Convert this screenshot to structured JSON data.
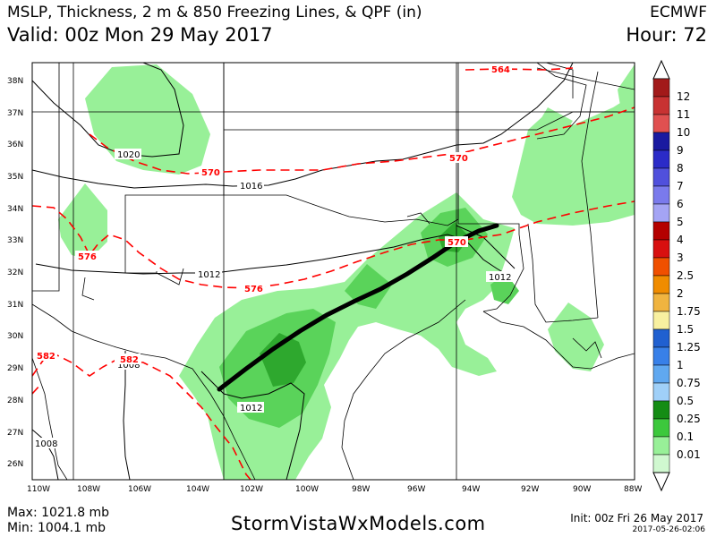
{
  "header": {
    "title": "MSLP, Thickness, 2 m & 850 Freezing Lines, & QPF (in)",
    "valid": "Valid: 00z Mon 29 May 2017",
    "model": "ECMWF",
    "hour": "Hour: 72"
  },
  "map": {
    "lat_ticks": [
      "38N",
      "37N",
      "36N",
      "35N",
      "34N",
      "33N",
      "32N",
      "31N",
      "30N",
      "29N",
      "28N",
      "27N",
      "26N"
    ],
    "lon_ticks": [
      "110W",
      "108W",
      "106W",
      "104W",
      "102W",
      "100W",
      "98W",
      "96W",
      "94W",
      "92W",
      "90W",
      "88W"
    ],
    "pressure_labels": [
      "1020",
      "1016",
      "1012",
      "1012",
      "1012",
      "1008",
      "1008"
    ],
    "thickness_labels": [
      "564",
      "570",
      "570",
      "570",
      "576",
      "576",
      "582",
      "582"
    ],
    "colors": {
      "qpf_light": "#98f098",
      "qpf_mid": "#5ad35a",
      "qpf_dark": "#2ea82e",
      "thickness": "#ff0000",
      "front": "#000000"
    }
  },
  "colorbar": {
    "labels": [
      "12",
      "11",
      "10",
      "9",
      "8",
      "7",
      "6",
      "5",
      "4",
      "3",
      "2.5",
      "2",
      "1.75",
      "1.5",
      "1.25",
      "1",
      "0.75",
      "0.5",
      "0.25",
      "0.1",
      "0.01"
    ],
    "colors": [
      "#a21a1a",
      "#c83232",
      "#e05050",
      "#1a1aa0",
      "#2b2bc8",
      "#5050dc",
      "#7a7aec",
      "#a4a4f4",
      "#b40000",
      "#d81010",
      "#f05000",
      "#f08c00",
      "#f0b440",
      "#f8f0a0",
      "#2060d0",
      "#3880e8",
      "#60a8f0",
      "#a0d0f8",
      "#148c14",
      "#3cc83c",
      "#98f098",
      "#d0f8d0"
    ]
  },
  "footer": {
    "max": "Max: 1021.8 mb",
    "min": "Min: 1004.1 mb",
    "site": "StormVistaWxModels.com",
    "init": "Init: 00z Fri 26 May 2017",
    "stamp": "2017-05-26-02:06"
  }
}
